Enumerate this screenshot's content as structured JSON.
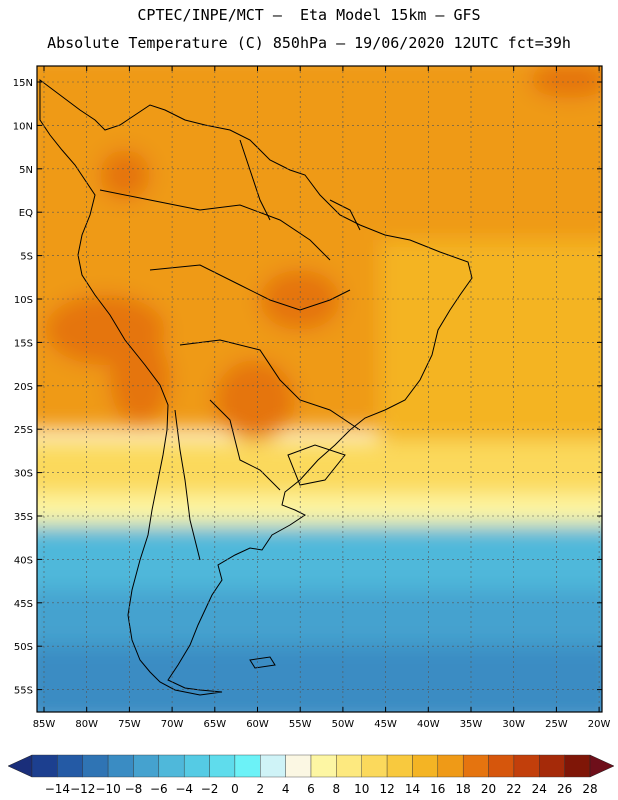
{
  "title_line1": "CPTEC/INPE/MCT –  Eta Model 15km – GFS",
  "title_line2": "Absolute Temperature (C) 850hPa – 19/06/2020 12UTC fct=39h",
  "lat_labels": [
    "15N",
    "10N",
    "5N",
    "EQ",
    "5S",
    "10S",
    "15S",
    "20S",
    "25S",
    "30S",
    "35S",
    "40S",
    "45S",
    "50S",
    "55S"
  ],
  "lon_labels": [
    "85W",
    "80W",
    "75W",
    "70W",
    "65W",
    "60W",
    "55W",
    "50W",
    "45W",
    "40W",
    "35W",
    "30W",
    "25W",
    "20W"
  ],
  "colorbar": {
    "labels": [
      "-14",
      "-12",
      "-10",
      "-8",
      "-6",
      "-4",
      "-2",
      "0",
      "2",
      "4",
      "6",
      "8",
      "10",
      "12",
      "14",
      "16",
      "18",
      "20",
      "22",
      "24",
      "26",
      "28"
    ],
    "colors": [
      "#1c3f8f",
      "#245aa5",
      "#2f74b4",
      "#3a8cc3",
      "#45a2cf",
      "#4fb8da",
      "#55cbe4",
      "#5fdcec",
      "#6cf2f7",
      "#cff3f7",
      "#fbf7e3",
      "#fdf6a3",
      "#fde97f",
      "#fbd95c",
      "#f8c93e",
      "#f4b424",
      "#ef9a17",
      "#e5740f",
      "#d6560c",
      "#c23f0b",
      "#a52a09",
      "#7f1607"
    ],
    "under_color": "#1a2e7a",
    "over_color": "#6e0f1a"
  },
  "field_colors": {
    "warm": "#ef9a17",
    "hot": "#e5740f",
    "ocean_warm": "#f4b424",
    "mild": "#fbd95c",
    "cool": "#fdf6a3",
    "cold": "#4fb8da",
    "colder": "#45a2cf",
    "coldest": "#3a8cc3"
  }
}
